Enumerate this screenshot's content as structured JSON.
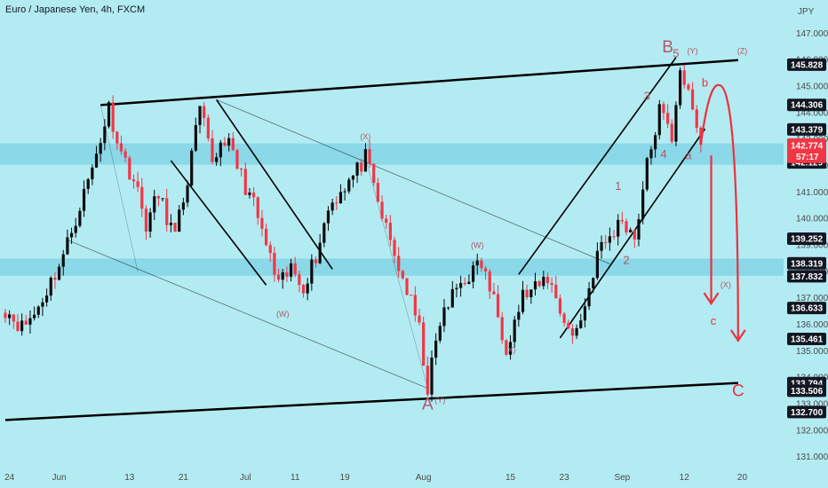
{
  "chart": {
    "title": "Euro / Japanese Yen, 4h, FXCM",
    "currency_label": "JPY",
    "colors": {
      "background": "#b3ebf2",
      "candle_up": "#0b0b0b",
      "candle_down": "#f23645",
      "zone": "#7fd3e5",
      "arrow": "#e8333e",
      "wave_label": "#b2566a",
      "price_tag_bg": "#131722",
      "current_price_bg": "#f23645"
    }
  },
  "price_tags": [
    {
      "label": "145.828",
      "value": 145.828
    },
    {
      "label": "144.306",
      "value": 144.306
    },
    {
      "label": "143.379",
      "value": 143.379
    },
    {
      "label": "142.129",
      "value": 142.129
    },
    {
      "label": "139.252",
      "value": 139.252
    },
    {
      "label": "138.319",
      "value": 138.319
    },
    {
      "label": "137.832",
      "value": 137.832
    },
    {
      "label": "136.633",
      "value": 136.633
    },
    {
      "label": "135.461",
      "value": 135.461
    },
    {
      "label": "133.794",
      "value": 133.794
    },
    {
      "label": "133.506",
      "value": 133.506
    },
    {
      "label": "132.700",
      "value": 132.7
    }
  ],
  "current_price": {
    "price_label": "142.774",
    "countdown": "57:17",
    "value": 142.774
  },
  "wave_labels": [
    {
      "text": "B",
      "price": 146.3,
      "index": 160,
      "size": "large"
    },
    {
      "text": "5",
      "price": 146.1,
      "index": 162,
      "size": "medium"
    },
    {
      "text": "(Y)",
      "price": 146.25,
      "index": 166,
      "size": "small"
    },
    {
      "text": "(Z)",
      "price": 146.25,
      "index": 178,
      "size": "small"
    },
    {
      "text": "b",
      "price": 145.0,
      "index": 169,
      "size": "medium"
    },
    {
      "text": "3",
      "price": 144.5,
      "index": 155,
      "size": "medium"
    },
    {
      "text": "4",
      "price": 142.3,
      "index": 159,
      "size": "medium"
    },
    {
      "text": "a",
      "price": 142.25,
      "index": 165,
      "size": "medium"
    },
    {
      "text": "1",
      "price": 141.1,
      "index": 148,
      "size": "medium"
    },
    {
      "text": "2",
      "price": 138.3,
      "index": 150,
      "size": "medium"
    },
    {
      "text": "(X)",
      "price": 143.0,
      "index": 87,
      "size": "small"
    },
    {
      "text": "(W)",
      "price": 138.9,
      "index": 114,
      "size": "small"
    },
    {
      "text": "(W)",
      "price": 136.3,
      "index": 67,
      "size": "small"
    },
    {
      "text": "(X)",
      "price": 134.95,
      "index": 122,
      "size": "small"
    },
    {
      "text": "(X)",
      "price": 137.4,
      "index": 174,
      "size": "small"
    },
    {
      "text": "c",
      "price": 136.0,
      "index": 171,
      "size": "medium"
    },
    {
      "text": "A",
      "price": 132.8,
      "index": 102,
      "size": "large"
    },
    {
      "text": "(Y)",
      "price": 133.05,
      "index": 105,
      "size": "small"
    },
    {
      "text": "C",
      "price": 133.3,
      "index": 177,
      "size": "large"
    }
  ],
  "chart_data": {
    "type": "candlestick",
    "symbol": "Euro / Japanese Yen",
    "timeframe": "4h",
    "source": "FXCM",
    "ylim": [
      130.5,
      147.6
    ],
    "y_ticks": [
      131.0,
      132.0,
      133.0,
      134.0,
      135.0,
      136.0,
      137.0,
      138.0,
      139.0,
      140.0,
      141.0,
      142.0,
      143.0,
      144.0,
      145.0,
      146.0,
      147.0
    ],
    "y_tick_labels": [
      "131.000",
      "132.000",
      "133.000",
      "134.000",
      "135.000",
      "136.000",
      "137.000",
      "138.000",
      "139.000",
      "140.000",
      "141.000",
      "142.000",
      "143.000",
      "144.000",
      "145.000",
      "146.000",
      "147.000"
    ],
    "x_ticks": [
      {
        "label": "24",
        "index": 1
      },
      {
        "label": "Jun",
        "index": 13
      },
      {
        "label": "13",
        "index": 30
      },
      {
        "label": "21",
        "index": 43
      },
      {
        "label": "Jul",
        "index": 58
      },
      {
        "label": "11",
        "index": 70
      },
      {
        "label": "19",
        "index": 82
      },
      {
        "label": "Aug",
        "index": 101
      },
      {
        "label": "15",
        "index": 122
      },
      {
        "label": "23",
        "index": 135
      },
      {
        "label": "Sep",
        "index": 149
      },
      {
        "label": "12",
        "index": 164
      },
      {
        "label": "20",
        "index": 178
      }
    ],
    "close_path": [
      [
        0,
        136.6
      ],
      [
        4,
        135.9
      ],
      [
        7,
        136.4
      ],
      [
        10,
        137.3
      ],
      [
        14,
        138.6
      ],
      [
        18,
        140.5
      ],
      [
        21,
        141.9
      ],
      [
        25,
        144.2
      ],
      [
        28,
        142.5
      ],
      [
        31,
        141.5
      ],
      [
        34,
        139.8
      ],
      [
        37,
        140.9
      ],
      [
        41,
        139.3
      ],
      [
        44,
        141.5
      ],
      [
        47,
        144.1
      ],
      [
        50,
        142.2
      ],
      [
        53,
        143.1
      ],
      [
        56,
        142.0
      ],
      [
        60,
        140.5
      ],
      [
        63,
        139.0
      ],
      [
        66,
        137.4
      ],
      [
        69,
        138.1
      ],
      [
        72,
        137.5
      ],
      [
        75,
        138.6
      ],
      [
        78,
        140.4
      ],
      [
        81,
        141.1
      ],
      [
        84,
        141.6
      ],
      [
        87,
        142.3
      ],
      [
        90,
        140.6
      ],
      [
        94,
        138.6
      ],
      [
        97,
        137.3
      ],
      [
        100,
        135.8
      ],
      [
        102,
        133.6
      ],
      [
        105,
        136.1
      ],
      [
        109,
        137.4
      ],
      [
        112,
        137.9
      ],
      [
        115,
        138.3
      ],
      [
        118,
        136.9
      ],
      [
        121,
        135.2
      ],
      [
        125,
        137.1
      ],
      [
        128,
        137.3
      ],
      [
        131,
        137.8
      ],
      [
        134,
        136.6
      ],
      [
        137,
        135.5
      ],
      [
        140,
        136.7
      ],
      [
        143,
        138.7
      ],
      [
        146,
        139.3
      ],
      [
        149,
        140.0
      ],
      [
        152,
        139.3
      ],
      [
        155,
        142.0
      ],
      [
        158,
        144.1
      ],
      [
        161,
        143.1
      ],
      [
        163,
        145.8
      ],
      [
        165,
        144.6
      ],
      [
        168,
        142.8
      ]
    ]
  }
}
